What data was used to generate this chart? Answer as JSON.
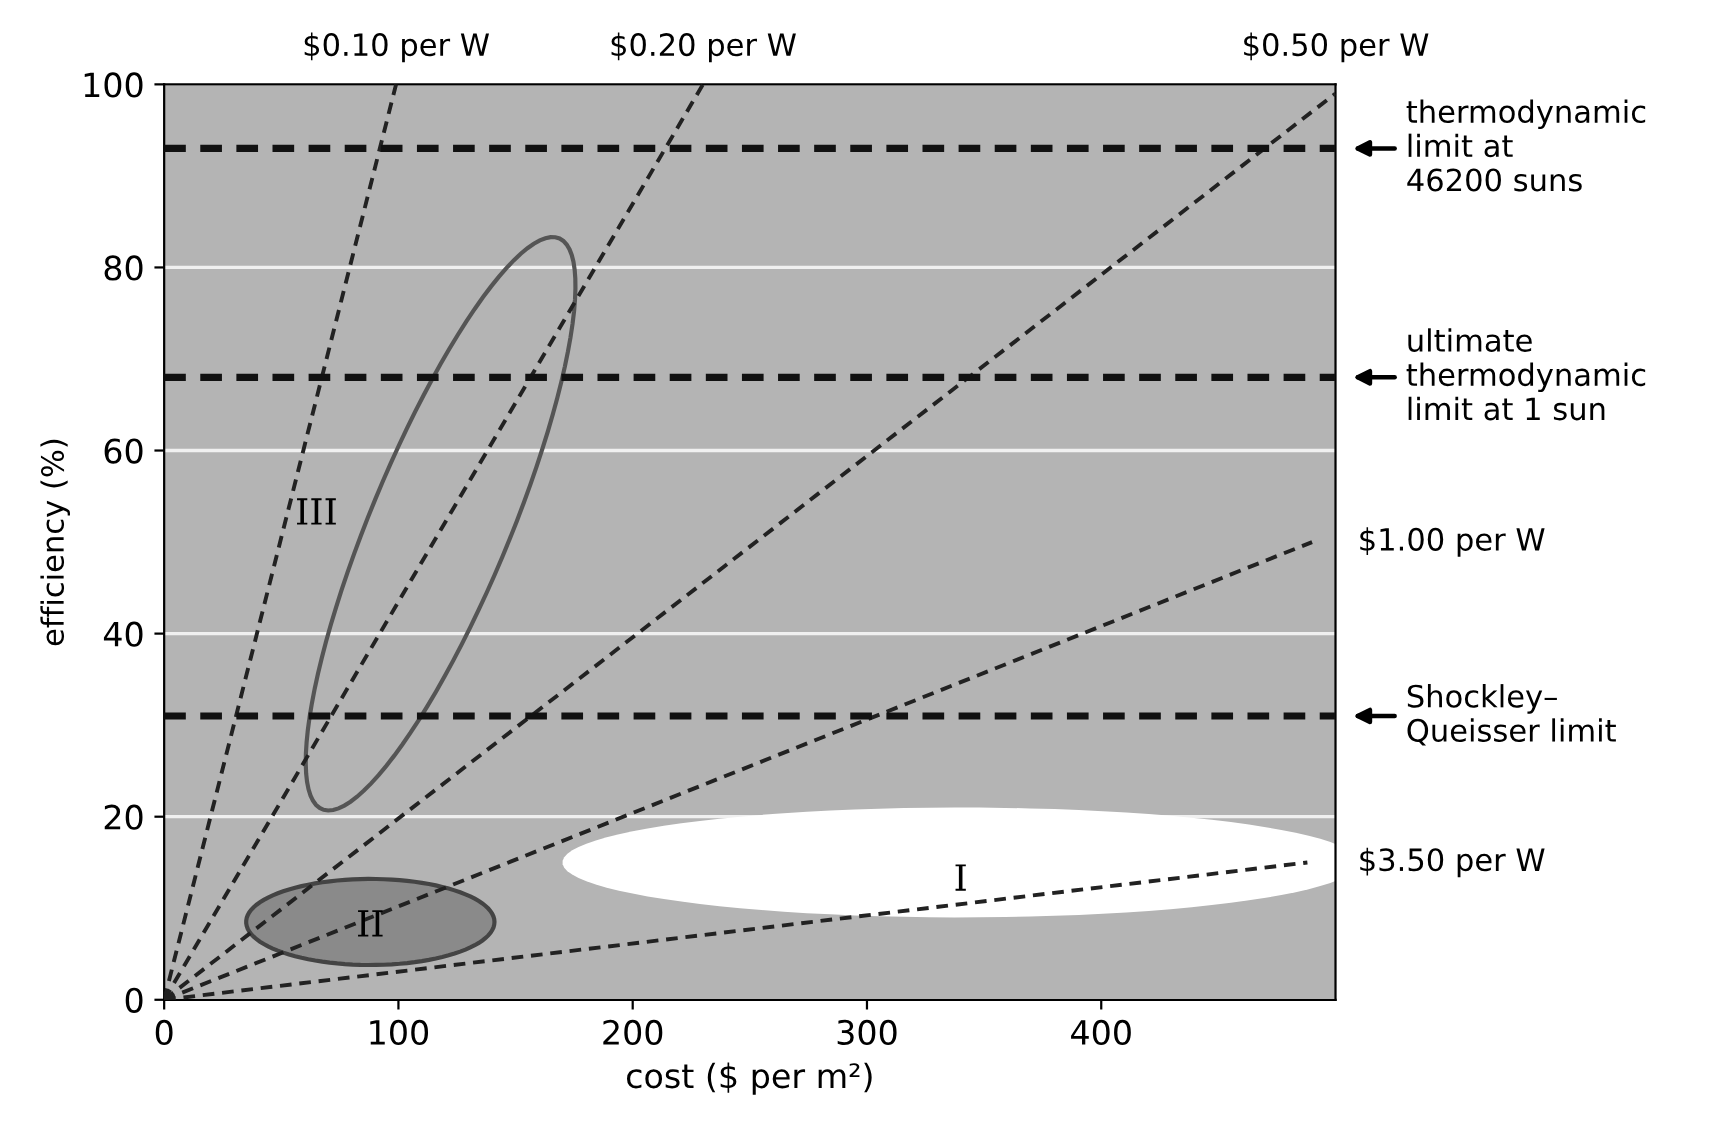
{
  "chart_data": {
    "type": "line",
    "xlabel": "cost ($ per m²)",
    "ylabel": "efficiency (%)",
    "xlim": [
      0,
      500
    ],
    "ylim": [
      0,
      100
    ],
    "xticks": [
      0,
      100,
      200,
      300,
      400
    ],
    "yticks": [
      0,
      20,
      40,
      60,
      80,
      100
    ],
    "grid": "y",
    "legend": false,
    "line_style": "dashed",
    "marker": "none",
    "series": [
      {
        "name": "$0.10 per W",
        "color": "#222222",
        "x": [
          0,
          99
        ],
        "values": [
          0,
          100
        ]
      },
      {
        "name": "$0.20 per W",
        "color": "#222222",
        "x": [
          0,
          230
        ],
        "values": [
          0,
          100
        ]
      },
      {
        "name": "$0.50 per W",
        "color": "#222222",
        "x": [
          0,
          500
        ],
        "values": [
          0,
          99
        ]
      },
      {
        "name": "$1.00 per W",
        "color": "#222222",
        "x": [
          0,
          490
        ],
        "values": [
          0,
          50
        ]
      },
      {
        "name": "$3.50 per W",
        "color": "#222222",
        "x": [
          0,
          488
        ],
        "values": [
          0,
          15
        ]
      }
    ],
    "ref_lines": [
      {
        "axis": "y",
        "value": 93,
        "label": "thermodynamic\nlimit at\n46200 suns",
        "color": "#111111",
        "line_style": "dashed"
      },
      {
        "axis": "y",
        "value": 68,
        "label": "ultimate\nthermodynamic\nlimit at 1 sun",
        "color": "#111111",
        "line_style": "dashed"
      },
      {
        "axis": "y",
        "value": 31,
        "label": "Shockley–\nQueisser limit",
        "color": "#111111",
        "line_style": "dashed"
      }
    ],
    "annotations": [
      "I",
      "II",
      "III"
    ]
  }
}
